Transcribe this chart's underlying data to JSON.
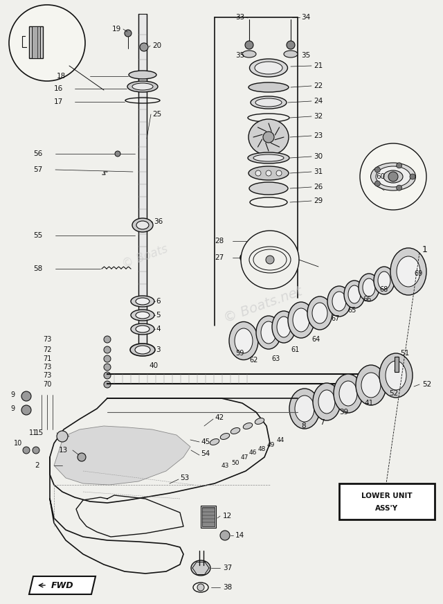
{
  "bg_color": "#f0f0ec",
  "line_color": "#111111",
  "watermark": "© Boats.net",
  "box_label_line1": "LOWER UNIT",
  "box_label_line2": "ASS’Y",
  "fwd_label": "FWD"
}
